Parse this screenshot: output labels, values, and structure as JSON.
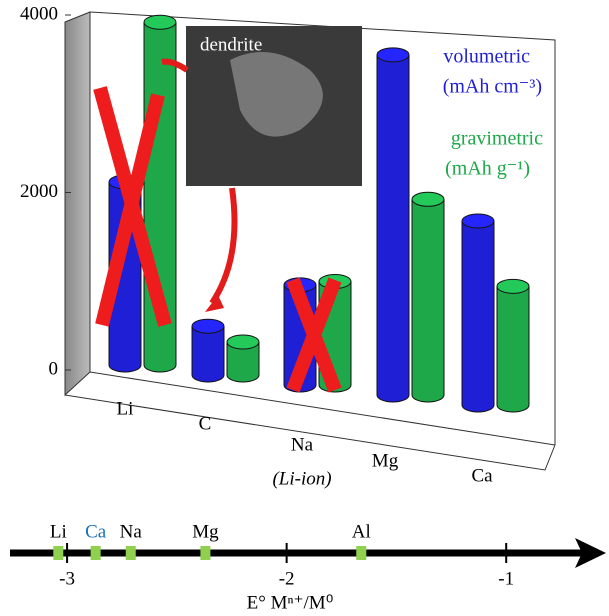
{
  "chart_data": [
    {
      "type": "cylinder-bar",
      "categories": [
        "Li",
        "C",
        "Na",
        "Mg",
        "Ca"
      ],
      "series": [
        {
          "name": "volumetric",
          "color": "#1f1fd6",
          "values": [
            2062,
            550,
            1128,
            3833,
            2073
          ]
        },
        {
          "name": "gravimetric",
          "color": "#1ea84a",
          "values": [
            3862,
            372,
            1166,
            2205,
            1337
          ]
        }
      ],
      "ylim": [
        0,
        4000
      ],
      "yticks": [
        0,
        2000,
        4000
      ],
      "grid": false,
      "annotations": {
        "volumetric_unit": "(mAh cm⁻³)",
        "gravimetric_unit": "(mAh g⁻¹)",
        "inset": "dendrite",
        "na_note": "(Li-ion)"
      }
    },
    {
      "type": "number-line",
      "x": [
        -3.04,
        -2.87,
        -2.71,
        -2.37,
        -1.66
      ],
      "labels": [
        "Li",
        "Ca",
        "Na",
        "Mg",
        "Al"
      ],
      "label_colors": [
        "#000000",
        "#1a6fb5",
        "#000000",
        "#000000",
        "#000000"
      ],
      "marker_color": "#8fd14f",
      "xlim": [
        -3.26,
        -0.55
      ],
      "xticks": [
        -3,
        -2,
        -1
      ],
      "xlabel": "E° Mⁿ⁺/M⁰"
    }
  ]
}
